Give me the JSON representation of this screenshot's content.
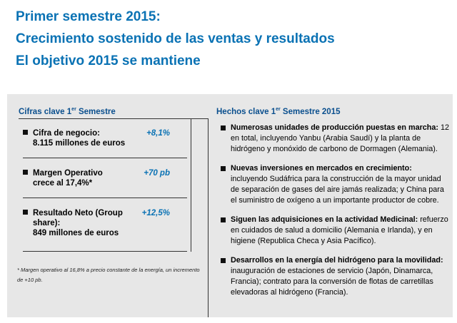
{
  "headline": [
    "Primer semestre 2015:",
    "Crecimiento sostenido de las ventas y resultados",
    "El objetivo 2015 se mantiene"
  ],
  "left": {
    "title_pre": "Cifras clave 1",
    "title_sup": "er",
    "title_post": " Semestre",
    "items": [
      {
        "line1": "Cifra de negocio:",
        "line2": "8.115 millones de euros",
        "value": "+8,1%"
      },
      {
        "line1": "Margen Operativo",
        "line2": "crece al 17,4%*",
        "value": "+70 pb"
      },
      {
        "line1": "Resultado Neto (Group share):",
        "line2": "849 millones de euros",
        "value": "+12,5%"
      }
    ],
    "footnote": "* Margen operativo al 16,8% a precio constante de la energía, un incremento de +10 pb."
  },
  "right": {
    "title_pre": "Hechos clave 1",
    "title_sup": "er",
    "title_post": " Semestre 2015",
    "facts": [
      {
        "bold": "Numerosas unidades de producción puestas en marcha:",
        "rest": " 12 en total, incluyendo Yanbu (Arabia Saudí) y la planta de hidrógeno y monóxido de carbono de Dormagen (Alemania)."
      },
      {
        "bold": "Nuevas inversiones en mercados en crecimiento:",
        "rest": " incluyendo Sudáfrica para la construcción de la mayor unidad de separación de gases del aire jamás realizada; y China para el suministro de oxígeno a un importante productor de cobre."
      },
      {
        "bold": "Siguen las adquisiciones en la actividad Medicinal:",
        "rest": " refuerzo en cuidados de salud a domicilio (Alemania e Irlanda), y en higiene (Republica Checa y Asia Pacífico)."
      },
      {
        "bold": "Desarrollos en la energía del hidrógeno para la movilidad:",
        "rest": " inauguración de estaciones de servicio (Japón, Dinamarca, Francia); contrato para la conversión de flotas de carretillas elevadoras al hidrógeno (Francia)."
      }
    ]
  }
}
